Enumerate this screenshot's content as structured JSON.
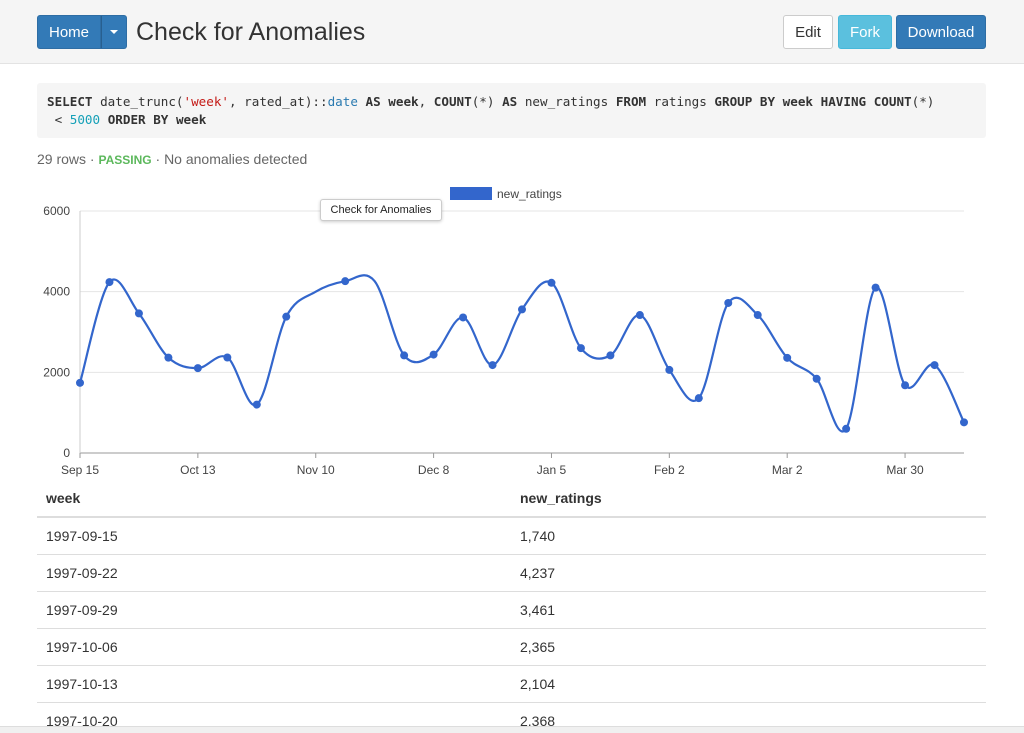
{
  "header": {
    "home_label": "Home",
    "title": "Check for Anomalies",
    "edit_label": "Edit",
    "fork_label": "Fork",
    "download_label": "Download"
  },
  "query": {
    "tokens": [
      {
        "t": "SELECT",
        "c": "kw"
      },
      {
        "t": " date_trunc(",
        "c": ""
      },
      {
        "t": "'week'",
        "c": "str"
      },
      {
        "t": ", rated_at)::",
        "c": ""
      },
      {
        "t": "date",
        "c": "typ"
      },
      {
        "t": " ",
        "c": ""
      },
      {
        "t": "AS",
        "c": "kw"
      },
      {
        "t": " ",
        "c": ""
      },
      {
        "t": "week",
        "c": "kw"
      },
      {
        "t": ", ",
        "c": ""
      },
      {
        "t": "COUNT",
        "c": "kw"
      },
      {
        "t": "(*) ",
        "c": ""
      },
      {
        "t": "AS",
        "c": "kw"
      },
      {
        "t": " new_ratings ",
        "c": ""
      },
      {
        "t": "FROM",
        "c": "kw"
      },
      {
        "t": " ratings ",
        "c": ""
      },
      {
        "t": "GROUP BY",
        "c": "kw"
      },
      {
        "t": " ",
        "c": ""
      },
      {
        "t": "week",
        "c": "kw"
      },
      {
        "t": " ",
        "c": ""
      },
      {
        "t": "HAVING",
        "c": "kw"
      },
      {
        "t": " ",
        "c": ""
      },
      {
        "t": "COUNT",
        "c": "kw"
      },
      {
        "t": "(*)\n < ",
        "c": ""
      },
      {
        "t": "5000",
        "c": "num"
      },
      {
        "t": " ",
        "c": ""
      },
      {
        "t": "ORDER BY",
        "c": "kw"
      },
      {
        "t": " ",
        "c": ""
      },
      {
        "t": "week",
        "c": "kw"
      }
    ]
  },
  "status": {
    "rows": "29 rows",
    "sep1": " · ",
    "passing": "PASSING",
    "sep2": " · ",
    "message": "No anomalies detected"
  },
  "tooltip": "Check for Anomalies",
  "colors": {
    "line": "#3366cc",
    "primary": "#337ab7",
    "info": "#5bc0de",
    "passing": "#5cb85c"
  },
  "chart_data": {
    "type": "line",
    "series": [
      {
        "name": "new_ratings",
        "values": [
          1740,
          4237,
          3461,
          2365,
          2104,
          2368,
          1200,
          3380,
          4000,
          4260,
          4260,
          2420,
          2440,
          3360,
          2180,
          3560,
          4220,
          2600,
          2420,
          3420,
          2060,
          1360,
          3720,
          3420,
          2360,
          1840,
          600,
          4100,
          1680,
          2180,
          760
        ]
      }
    ],
    "x_tick_labels": [
      "Sep 15",
      "Oct 13",
      "Nov 10",
      "Dec 8",
      "Jan 5",
      "Feb 2",
      "Mar 2",
      "Mar 30"
    ],
    "y_tick_labels": [
      "0",
      "2000",
      "4000",
      "6000"
    ],
    "ylim": [
      0,
      6000
    ],
    "legend_position": "top",
    "grid": true,
    "point_markers": [
      1,
      1,
      1,
      1,
      1,
      1,
      1,
      1,
      0,
      1,
      0,
      1,
      1,
      1,
      1,
      1,
      1,
      1,
      1,
      1,
      1,
      1,
      1,
      1,
      1,
      1,
      1,
      1,
      1,
      1,
      1
    ]
  },
  "table": {
    "columns": [
      "week",
      "new_ratings"
    ],
    "rows": [
      [
        "1997-09-15",
        "1,740"
      ],
      [
        "1997-09-22",
        "4,237"
      ],
      [
        "1997-09-29",
        "3,461"
      ],
      [
        "1997-10-06",
        "2,365"
      ],
      [
        "1997-10-13",
        "2,104"
      ],
      [
        "1997-10-20",
        "2,368"
      ]
    ]
  }
}
